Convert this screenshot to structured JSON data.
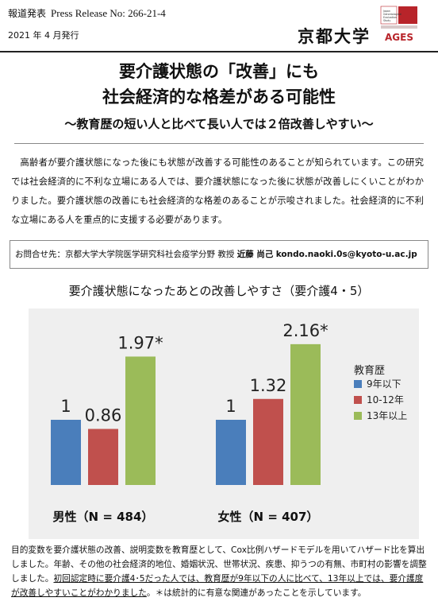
{
  "header": {
    "press_label": "報道発表",
    "press_release_no": "Press Release No: 266-21-4",
    "issue_date": "2021 年 4 月発行",
    "university": "京都大学",
    "logo_text": "AGES",
    "logo_small_text": "Japan Gerontological Evaluation Study"
  },
  "title": {
    "line1": "要介護状態の「改善」にも",
    "line2": "社会経済的な格差がある可能性",
    "subtitle": "～教育歴の短い人と比べて長い人では２倍改善しやすい～"
  },
  "summary": "高齢者が要介護状態になった後にも状態が改善する可能性のあることが知られています。この研究では社会経済的に不利な立場にある人では、要介護状態になった後に状態が改善しにくいことがわかりました。要介護状態の改善にも社会経済的な格差のあることが示唆されました。社会経済的に不利な立場にある人を重点的に支援する必要があります。",
  "contact": {
    "prefix": "お問合せ先：京都大学大学院医学研究科社会疫学分野 教授",
    "name": "近藤 尚己",
    "email": "kondo.naoki.0s@kyoto-u.ac.jp"
  },
  "chart_title": "要介護状態になったあとの改善しやすさ（要介護4・5）",
  "chart_data": {
    "type": "bar",
    "legend_title": "教育歴",
    "legend_position": "right",
    "grid": false,
    "ylim": [
      0,
      2.5
    ],
    "categories": [
      "男性（N = 484）",
      "女性（N = 407）"
    ],
    "series": [
      {
        "name": "9年以下",
        "color": "#4a7ebb",
        "values": [
          1,
          1
        ],
        "labels": [
          "1",
          "1"
        ]
      },
      {
        "name": "10-12年",
        "color": "#c0504d",
        "values": [
          0.86,
          1.32
        ],
        "labels": [
          "0.86",
          "1.32"
        ]
      },
      {
        "name": "13年以上",
        "color": "#9bbb59",
        "values": [
          1.97,
          2.16
        ],
        "labels": [
          "1.97*",
          "2.16*"
        ]
      }
    ]
  },
  "note": {
    "part1": "目的変数を要介護状態の改善、説明変数を教育歴として、Cox比例ハザードモデルを用いてハザード比を算出しました。年齢、その他の社会経済的地位、婚姻状況、世帯状況、疾患、抑うつの有無、市町村の影響を調整しました。",
    "underlined": "初回認定時に要介護4･5だった人では、教育歴が9年以下の人に比べて、13年以上では、要介護度が改善しやすいことがわかりました",
    "part2": "。＊は統計的に有意な関連があったことを示しています。"
  }
}
